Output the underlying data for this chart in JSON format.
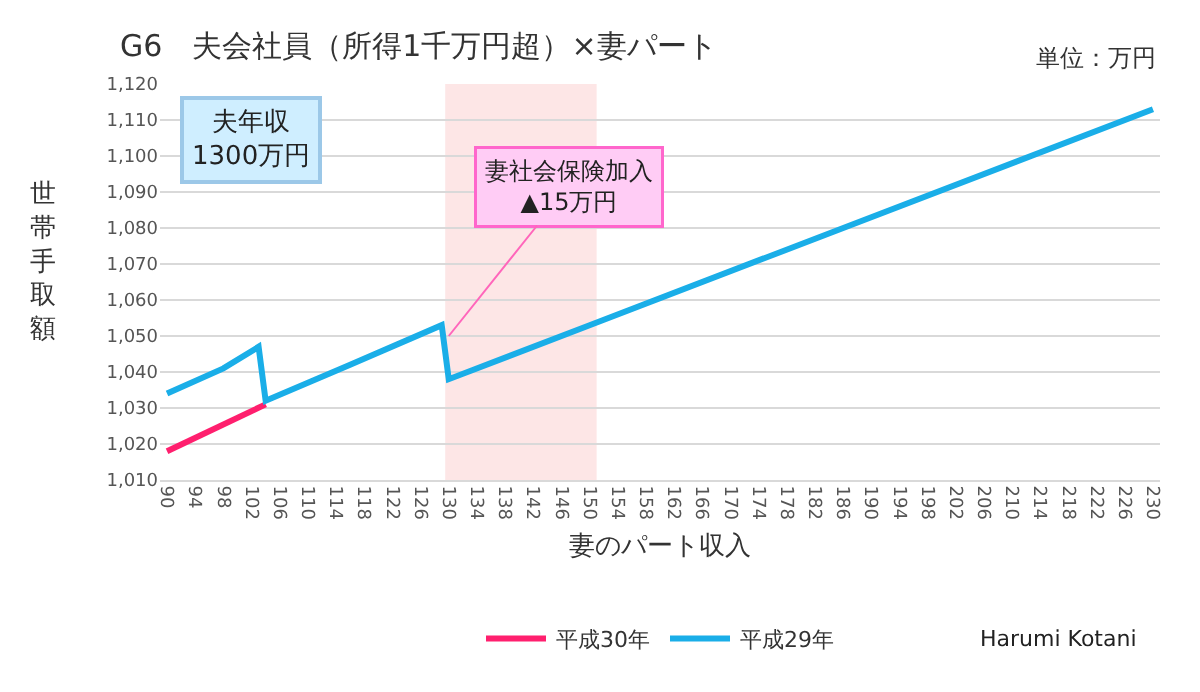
{
  "chart_data": {
    "type": "line",
    "title": "G6　夫会社員（所得1千万円超）×妻パート",
    "xlabel": "妻のパート収入",
    "ylabel": "世帯手取額",
    "annotations": [
      "単位：万円",
      "夫年収\n1300万円",
      {
        "text": "妻社会保険加入\n▲15万円",
        "x": 130,
        "y": 1050
      },
      "Harumi Kotani"
    ],
    "series": [
      {
        "name": "平成30年",
        "color": "#ff1f6e",
        "x": [
          90,
          104
        ],
        "values": [
          1018,
          1031
        ]
      },
      {
        "name": "平成29年",
        "color": "#1aaee8",
        "x": [
          90,
          98,
          103,
          104,
          116,
          129,
          130,
          150,
          190,
          230
        ],
        "values": [
          1034,
          1041,
          1047,
          1032,
          1042,
          1053,
          1038,
          1053,
          1083,
          1113
        ]
      }
    ],
    "xlim": [
      89,
      231
    ],
    "xticks": [
      90,
      94,
      98,
      102,
      106,
      110,
      114,
      118,
      122,
      126,
      130,
      134,
      138,
      142,
      146,
      150,
      154,
      158,
      162,
      166,
      170,
      174,
      178,
      182,
      186,
      190,
      194,
      198,
      202,
      206,
      210,
      214,
      218,
      222,
      226,
      230
    ],
    "ylim": [
      1010,
      1120
    ],
    "yticks": [
      {
        "value": 1010,
        "label": "1,010"
      },
      {
        "value": 1020,
        "label": "1,020"
      },
      {
        "value": 1030,
        "label": "1,030"
      },
      {
        "value": 1040,
        "label": "1,040"
      },
      {
        "value": 1050,
        "label": "1,050"
      },
      {
        "value": 1060,
        "label": "1,060"
      },
      {
        "value": 1070,
        "label": "1,070"
      },
      {
        "value": 1080,
        "label": "1,080"
      },
      {
        "value": 1090,
        "label": "1,090"
      },
      {
        "value": 1100,
        "label": "1,100"
      },
      {
        "value": 1110,
        "label": "1,110"
      },
      {
        "value": 1120,
        "label": "1,120"
      }
    ],
    "bands": [
      {
        "axis": "x",
        "from": 129.5,
        "to": 151,
        "color": "#fde6e6"
      }
    ],
    "grid": "y",
    "legend": "bottom",
    "line_style": "solid",
    "marker": "none"
  }
}
